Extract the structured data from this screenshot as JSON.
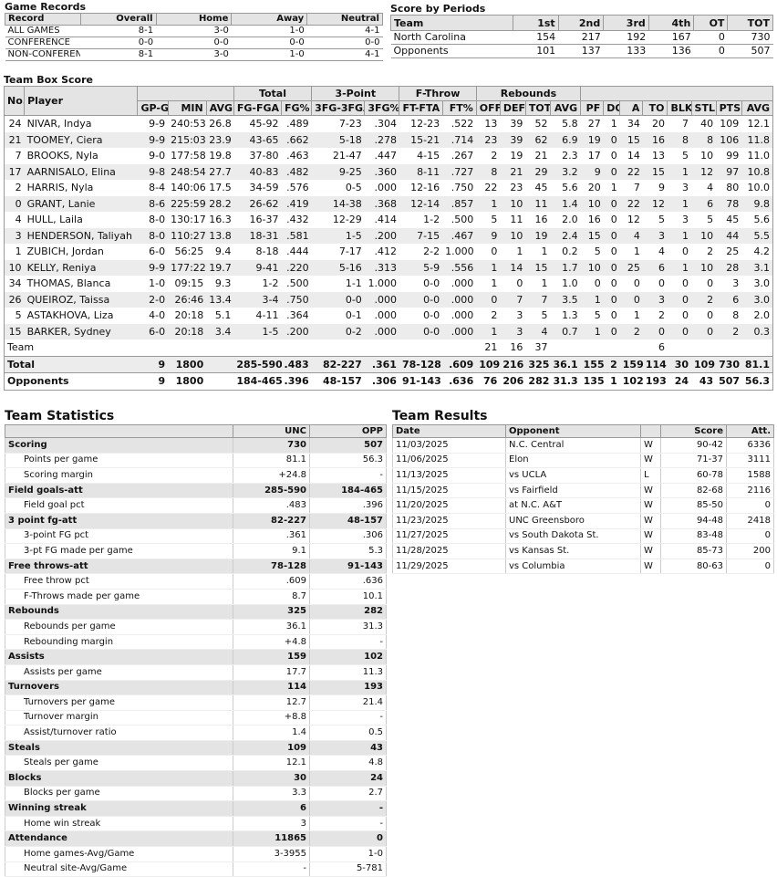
{
  "game_records": {
    "title": "Game Records",
    "columns": [
      "Record",
      "Overall",
      "Home",
      "Away",
      "Neutral"
    ],
    "rows": [
      [
        "ALL GAMES",
        "8-1",
        "3-0",
        "1-0",
        "4-1"
      ],
      [
        "CONFERENCE",
        "0-0",
        "0-0",
        "0-0",
        "0-0"
      ],
      [
        "NON-CONFERENCE",
        "8-1",
        "3-0",
        "1-0",
        "4-1"
      ]
    ]
  },
  "score_by_periods": {
    "title": "Score by Periods",
    "columns": [
      "Team",
      "1st",
      "2nd",
      "3rd",
      "4th",
      "OT",
      "TOT"
    ],
    "rows": [
      [
        "North Carolina",
        "154",
        "217",
        "192",
        "167",
        "0",
        "730"
      ],
      [
        "Opponents",
        "101",
        "137",
        "133",
        "136",
        "0",
        "507"
      ]
    ]
  },
  "box_score": {
    "title": "Team Box Score",
    "groups": [
      "Total",
      "3-Point",
      "F-Throw",
      "Rebounds"
    ],
    "columns": [
      "No.",
      "Player",
      "GP-GS",
      "MIN",
      "AVG",
      "FG-FGA",
      "FG%",
      "3FG-3FGA",
      "3FG%",
      "FT-FTA",
      "FT%",
      "OFF",
      "DEF",
      "TOT",
      "AVG",
      "PF",
      "DQ",
      "A",
      "TO",
      "BLK",
      "STL",
      "PTS",
      "AVG"
    ],
    "rows": [
      [
        "24",
        "NIVAR, Indya",
        "9-9",
        "240:53",
        "26.8",
        "45-92",
        ".489",
        "7-23",
        ".304",
        "12-23",
        ".522",
        "13",
        "39",
        "52",
        "5.8",
        "27",
        "1",
        "34",
        "20",
        "7",
        "40",
        "109",
        "12.1"
      ],
      [
        "21",
        "TOOMEY, Ciera",
        "9-9",
        "215:03",
        "23.9",
        "43-65",
        ".662",
        "5-18",
        ".278",
        "15-21",
        ".714",
        "23",
        "39",
        "62",
        "6.9",
        "19",
        "0",
        "15",
        "16",
        "8",
        "8",
        "106",
        "11.8"
      ],
      [
        "7",
        "BROOKS, Nyla",
        "9-0",
        "177:58",
        "19.8",
        "37-80",
        ".463",
        "21-47",
        ".447",
        "4-15",
        ".267",
        "2",
        "19",
        "21",
        "2.3",
        "17",
        "0",
        "14",
        "13",
        "5",
        "10",
        "99",
        "11.0"
      ],
      [
        "17",
        "AARNISALO, Elina",
        "9-8",
        "248:54",
        "27.7",
        "40-83",
        ".482",
        "9-25",
        ".360",
        "8-11",
        ".727",
        "8",
        "21",
        "29",
        "3.2",
        "9",
        "0",
        "22",
        "15",
        "1",
        "12",
        "97",
        "10.8"
      ],
      [
        "2",
        "HARRIS, Nyla",
        "8-4",
        "140:06",
        "17.5",
        "34-59",
        ".576",
        "0-5",
        ".000",
        "12-16",
        ".750",
        "22",
        "23",
        "45",
        "5.6",
        "20",
        "1",
        "7",
        "9",
        "3",
        "4",
        "80",
        "10.0"
      ],
      [
        "0",
        "GRANT, Lanie",
        "8-6",
        "225:59",
        "28.2",
        "26-62",
        ".419",
        "14-38",
        ".368",
        "12-14",
        ".857",
        "1",
        "10",
        "11",
        "1.4",
        "10",
        "0",
        "22",
        "12",
        "1",
        "6",
        "78",
        "9.8"
      ],
      [
        "4",
        "HULL, Laila",
        "8-0",
        "130:17",
        "16.3",
        "16-37",
        ".432",
        "12-29",
        ".414",
        "1-2",
        ".500",
        "5",
        "11",
        "16",
        "2.0",
        "16",
        "0",
        "12",
        "5",
        "3",
        "5",
        "45",
        "5.6"
      ],
      [
        "3",
        "HENDERSON, Taliyah",
        "8-0",
        "110:27",
        "13.8",
        "18-31",
        ".581",
        "1-5",
        ".200",
        "7-15",
        ".467",
        "9",
        "10",
        "19",
        "2.4",
        "15",
        "0",
        "4",
        "3",
        "1",
        "10",
        "44",
        "5.5"
      ],
      [
        "1",
        "ZUBICH, Jordan",
        "6-0",
        "56:25",
        "9.4",
        "8-18",
        ".444",
        "7-17",
        ".412",
        "2-2",
        "1.000",
        "0",
        "1",
        "1",
        "0.2",
        "5",
        "0",
        "1",
        "4",
        "0",
        "2",
        "25",
        "4.2"
      ],
      [
        "10",
        "KELLY, Reniya",
        "9-9",
        "177:22",
        "19.7",
        "9-41",
        ".220",
        "5-16",
        ".313",
        "5-9",
        ".556",
        "1",
        "14",
        "15",
        "1.7",
        "10",
        "0",
        "25",
        "6",
        "1",
        "10",
        "28",
        "3.1"
      ],
      [
        "34",
        "THOMAS, Blanca",
        "1-0",
        "09:15",
        "9.3",
        "1-2",
        ".500",
        "1-1",
        "1.000",
        "0-0",
        ".000",
        "1",
        "0",
        "1",
        "1.0",
        "0",
        "0",
        "0",
        "0",
        "0",
        "0",
        "3",
        "3.0"
      ],
      [
        "26",
        "QUEIROZ, Taissa",
        "2-0",
        "26:46",
        "13.4",
        "3-4",
        ".750",
        "0-0",
        ".000",
        "0-0",
        ".000",
        "0",
        "7",
        "7",
        "3.5",
        "1",
        "0",
        "0",
        "3",
        "0",
        "2",
        "6",
        "3.0"
      ],
      [
        "5",
        "ASTAKHOVA, Liza",
        "4-0",
        "20:18",
        "5.1",
        "4-11",
        ".364",
        "0-1",
        ".000",
        "0-0",
        ".000",
        "2",
        "3",
        "5",
        "1.3",
        "5",
        "0",
        "1",
        "2",
        "0",
        "0",
        "8",
        "2.0"
      ],
      [
        "15",
        "BARKER, Sydney",
        "6-0",
        "20:18",
        "3.4",
        "1-5",
        ".200",
        "0-2",
        ".000",
        "0-0",
        ".000",
        "1",
        "3",
        "4",
        "0.7",
        "1",
        "0",
        "2",
        "0",
        "0",
        "0",
        "2",
        "0.3"
      ]
    ],
    "team_row": [
      "Team",
      null,
      null,
      null,
      null,
      null,
      null,
      null,
      null,
      null,
      "21",
      "16",
      "37",
      null,
      null,
      null,
      null,
      "6",
      null,
      null,
      null,
      null
    ],
    "total_row": [
      "Total",
      "9",
      "1800",
      null,
      "285-590",
      ".483",
      "82-227",
      ".361",
      "78-128",
      ".609",
      "109",
      "216",
      "325",
      "36.1",
      "155",
      "2",
      "159",
      "114",
      "30",
      "109",
      "730",
      "81.1"
    ],
    "opponents_row": [
      "Opponents",
      "9",
      "1800",
      null,
      "184-465",
      ".396",
      "48-157",
      ".306",
      "91-143",
      ".636",
      "76",
      "206",
      "282",
      "31.3",
      "135",
      "1",
      "102",
      "193",
      "24",
      "43",
      "507",
      "56.3"
    ]
  },
  "team_statistics": {
    "title": "Team Statistics",
    "columns": [
      "UNC",
      "OPP"
    ],
    "groups": [
      {
        "label": "Scoring",
        "values": [
          "730",
          "507"
        ],
        "items": [
          [
            "Points per game",
            "81.1",
            "56.3"
          ],
          [
            "Scoring margin",
            "+24.8",
            "-"
          ]
        ]
      },
      {
        "label": "Field goals-att",
        "values": [
          "285-590",
          "184-465"
        ],
        "items": [
          [
            "Field goal pct",
            ".483",
            ".396"
          ]
        ]
      },
      {
        "label": "3 point fg-att",
        "values": [
          "82-227",
          "48-157"
        ],
        "items": [
          [
            "3-point FG pct",
            ".361",
            ".306"
          ],
          [
            "3-pt FG made per game",
            "9.1",
            "5.3"
          ]
        ]
      },
      {
        "label": "Free throws-att",
        "values": [
          "78-128",
          "91-143"
        ],
        "items": [
          [
            "Free throw pct",
            ".609",
            ".636"
          ],
          [
            "F-Throws made per game",
            "8.7",
            "10.1"
          ]
        ]
      },
      {
        "label": "Rebounds",
        "values": [
          "325",
          "282"
        ],
        "items": [
          [
            "Rebounds per game",
            "36.1",
            "31.3"
          ],
          [
            "Rebounding margin",
            "+4.8",
            "-"
          ]
        ]
      },
      {
        "label": "Assists",
        "values": [
          "159",
          "102"
        ],
        "items": [
          [
            "Assists per game",
            "17.7",
            "11.3"
          ]
        ]
      },
      {
        "label": "Turnovers",
        "values": [
          "114",
          "193"
        ],
        "items": [
          [
            "Turnovers per game",
            "12.7",
            "21.4"
          ],
          [
            "Turnover margin",
            "+8.8",
            "-"
          ],
          [
            "Assist/turnover ratio",
            "1.4",
            "0.5"
          ]
        ]
      },
      {
        "label": "Steals",
        "values": [
          "109",
          "43"
        ],
        "items": [
          [
            "Steals per game",
            "12.1",
            "4.8"
          ]
        ]
      },
      {
        "label": "Blocks",
        "values": [
          "30",
          "24"
        ],
        "items": [
          [
            "Blocks per game",
            "3.3",
            "2.7"
          ]
        ]
      },
      {
        "label": "Winning streak",
        "values": [
          "6",
          "-"
        ],
        "items": [
          [
            "Home win streak",
            "3",
            "-"
          ]
        ]
      },
      {
        "label": "Attendance",
        "values": [
          "11865",
          "0"
        ],
        "items": [
          [
            "Home games-Avg/Game",
            "3-3955",
            "1-0"
          ],
          [
            "Neutral site-Avg/Game",
            "-",
            "5-781"
          ]
        ]
      }
    ]
  },
  "team_results": {
    "title": "Team Results",
    "columns": [
      "Date",
      "Opponent",
      "Score",
      "Att."
    ],
    "rows": [
      [
        "11/03/2025",
        "N.C. Central",
        "W",
        "90-42",
        "6336"
      ],
      [
        "11/06/2025",
        "Elon",
        "W",
        "71-37",
        "3111"
      ],
      [
        "11/13/2025",
        "vs UCLA",
        "L",
        "60-78",
        "1588"
      ],
      [
        "11/15/2025",
        "vs Fairfield",
        "W",
        "82-68",
        "2116"
      ],
      [
        "11/20/2025",
        "at N.C. A&T",
        "W",
        "85-50",
        "0"
      ],
      [
        "11/23/2025",
        "UNC Greensboro",
        "W",
        "94-48",
        "2418"
      ],
      [
        "11/27/2025",
        "vs South Dakota St.",
        "W",
        "83-48",
        "0"
      ],
      [
        "11/28/2025",
        "vs Kansas St.",
        "W",
        "85-73",
        "200"
      ],
      [
        "11/29/2025",
        "vs Columbia",
        "W",
        "80-63",
        "0"
      ]
    ]
  }
}
